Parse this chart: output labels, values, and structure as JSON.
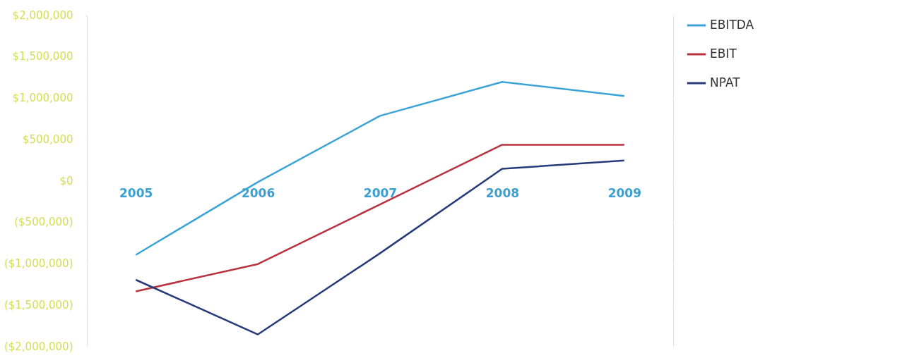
{
  "chart_data": {
    "type": "line",
    "categories": [
      "2005",
      "2006",
      "2007",
      "2008",
      "2009"
    ],
    "series": [
      {
        "name": "EBITDA",
        "color": "#3ba3d6",
        "values": [
          -900000,
          -20000,
          780000,
          1190000,
          1020000
        ]
      },
      {
        "name": "EBIT",
        "color": "#b8323f",
        "values": [
          -1340000,
          -1010000,
          -290000,
          430000,
          430000
        ]
      },
      {
        "name": "NPAT",
        "color": "#263a7a",
        "values": [
          -1200000,
          -1860000,
          -880000,
          140000,
          240000
        ]
      }
    ],
    "ylim": [
      -2000000,
      2000000
    ],
    "yticks": [
      {
        "value": -2000000,
        "label": "($2,000,000)"
      },
      {
        "value": -1500000,
        "label": "($1,500,000)"
      },
      {
        "value": -1000000,
        "label": "($1,000,000)"
      },
      {
        "value": -500000,
        "label": "($500,000)"
      },
      {
        "value": 0,
        "label": "$0"
      },
      {
        "value": 500000,
        "label": "$500,000"
      },
      {
        "value": 1000000,
        "label": "$1,000,000"
      },
      {
        "value": 1500000,
        "label": "$1,500,000"
      },
      {
        "value": 2000000,
        "label": "$2,000,000"
      }
    ],
    "grid": "y",
    "legend": "top right",
    "marker": "none",
    "line_style": "solid"
  }
}
